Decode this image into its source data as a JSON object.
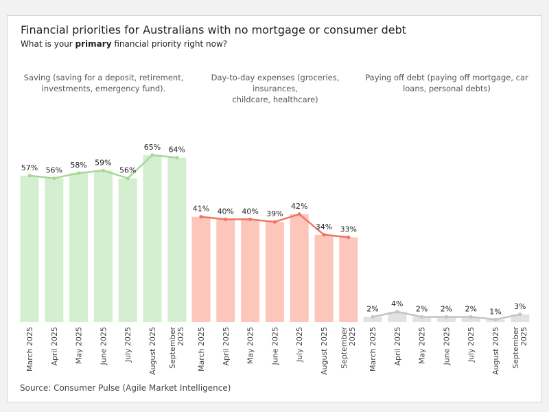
{
  "header": {
    "title": "Financial priorities for Australians with no mortgage or consumer debt",
    "subtitle_prefix": "What is your ",
    "subtitle_bold": "primary",
    "subtitle_suffix": " financial priority right now?"
  },
  "source": "Source: Consumer Pulse (Agile Market Intelligence)",
  "chart_data": {
    "type": "bar",
    "categories": [
      "March 2025",
      "April 2025",
      "May 2025",
      "June 2025",
      "July 2025",
      "August 2025",
      "September 2025"
    ],
    "ylim": [
      0,
      70
    ],
    "grid": false,
    "panels": [
      {
        "header_line1": "Saving (saving for a deposit, retirement,",
        "header_line2": "investments, emergency fund).",
        "values": [
          57,
          56,
          58,
          59,
          56,
          65,
          64
        ],
        "bar_color": "#d4eed0",
        "line_color": "#a6d995"
      },
      {
        "header_line1": "Day-to-day expenses (groceries, insurances,",
        "header_line2": "childcare, healthcare)",
        "values": [
          41,
          40,
          40,
          39,
          42,
          34,
          33
        ],
        "bar_color": "#fcc6bb",
        "line_color": "#ee7563"
      },
      {
        "header_line1": "Paying off debt (paying off mortgage, car",
        "header_line2": "loans, personal debts)",
        "values": [
          2,
          4,
          2,
          2,
          2,
          1,
          3
        ],
        "bar_color": "#e2e2e2",
        "line_color": "#c4c4c4"
      }
    ]
  }
}
